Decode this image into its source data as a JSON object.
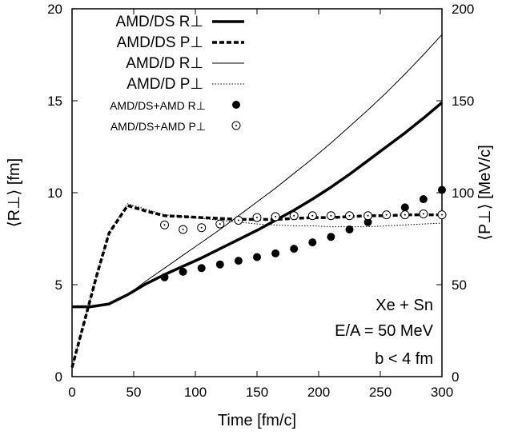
{
  "chart_data": {
    "type": "line",
    "xlabel": "Time [fm/c]",
    "ylabel_left": "⟨R⊥⟩ [fm]",
    "ylabel_right": "⟨P⊥⟩ [MeV/c]",
    "xlim": [
      0,
      300
    ],
    "ylim_left": [
      0,
      20
    ],
    "ylim_right": [
      0,
      200
    ],
    "x_ticks": [
      "0",
      "50",
      "100",
      "150",
      "200",
      "250",
      "300"
    ],
    "y_left_ticks": [
      "0",
      "5",
      "10",
      "15",
      "20"
    ],
    "y_right_ticks": [
      "0",
      "50",
      "100",
      "150",
      "200"
    ],
    "grid": false,
    "legend_position": "top-left",
    "annotations": [
      "Xe + Sn",
      "E/A = 50 MeV",
      "b < 4 fm"
    ],
    "series": [
      {
        "name": "AMD/DS R⊥",
        "axis": "left",
        "style": "thick-solid",
        "x": [
          0,
          15,
          30,
          45,
          60,
          75,
          90,
          105,
          120,
          135,
          150,
          165,
          180,
          195,
          210,
          225,
          240,
          255,
          270,
          285,
          300
        ],
        "y": [
          3.8,
          3.8,
          3.95,
          4.45,
          5.05,
          5.55,
          6.0,
          6.45,
          6.95,
          7.45,
          7.95,
          8.5,
          9.05,
          9.65,
          10.3,
          11.0,
          11.75,
          12.5,
          13.25,
          14.05,
          14.9
        ]
      },
      {
        "name": "AMD/DS P⊥",
        "axis": "right",
        "style": "thick-dashed",
        "x": [
          0,
          10,
          20,
          30,
          40,
          45,
          60,
          75,
          90,
          105,
          120,
          135,
          150,
          165,
          180,
          195,
          210,
          225,
          240,
          255,
          270,
          285,
          300
        ],
        "y": [
          5,
          30,
          55,
          78,
          88,
          93,
          90,
          87.5,
          87,
          86.5,
          86,
          85.5,
          85.5,
          85.5,
          86,
          86.5,
          86.5,
          87,
          87.5,
          87.5,
          88,
          88,
          88
        ]
      },
      {
        "name": "AMD/D R⊥",
        "axis": "left",
        "style": "thin-solid",
        "x": [
          0,
          15,
          30,
          45,
          60,
          75,
          90,
          105,
          120,
          135,
          150,
          165,
          180,
          195,
          210,
          225,
          240,
          255,
          270,
          285,
          300
        ],
        "y": [
          3.8,
          3.8,
          3.95,
          4.45,
          5.2,
          5.9,
          6.6,
          7.3,
          8.0,
          8.75,
          9.5,
          10.25,
          11.05,
          11.85,
          12.7,
          13.6,
          14.5,
          15.45,
          16.45,
          17.5,
          18.6
        ]
      },
      {
        "name": "AMD/D P⊥",
        "axis": "right",
        "style": "thin-dotted",
        "x": [
          0,
          10,
          20,
          30,
          40,
          45,
          60,
          75,
          90,
          105,
          120,
          135,
          150,
          165,
          180,
          195,
          210,
          225,
          240,
          255,
          270,
          285,
          300
        ],
        "y": [
          5,
          30,
          55,
          78,
          89,
          94,
          91,
          88,
          87,
          86,
          85,
          84,
          83,
          82.5,
          82,
          82,
          81.5,
          81.5,
          81.5,
          82,
          82.5,
          83,
          83.5
        ]
      },
      {
        "name": "AMD/DS+AMD R⊥",
        "axis": "left",
        "style": "filled-circles",
        "x": [
          75,
          90,
          105,
          120,
          135,
          150,
          165,
          180,
          195,
          210,
          225,
          240,
          255,
          270,
          285,
          300
        ],
        "y": [
          5.4,
          5.7,
          5.9,
          6.1,
          6.3,
          6.5,
          6.7,
          6.95,
          7.3,
          7.6,
          8.0,
          8.4,
          8.8,
          9.2,
          9.65,
          10.15
        ]
      },
      {
        "name": "AMD/DS+AMD P⊥",
        "axis": "right",
        "style": "open-circles",
        "x": [
          75,
          90,
          105,
          120,
          135,
          150,
          165,
          180,
          195,
          210,
          225,
          240,
          255,
          270,
          285,
          300
        ],
        "y": [
          82.5,
          80,
          81,
          83,
          85,
          86.5,
          87,
          87.5,
          87.5,
          87.5,
          87.5,
          87.5,
          88,
          88,
          88.5,
          88
        ]
      }
    ]
  }
}
